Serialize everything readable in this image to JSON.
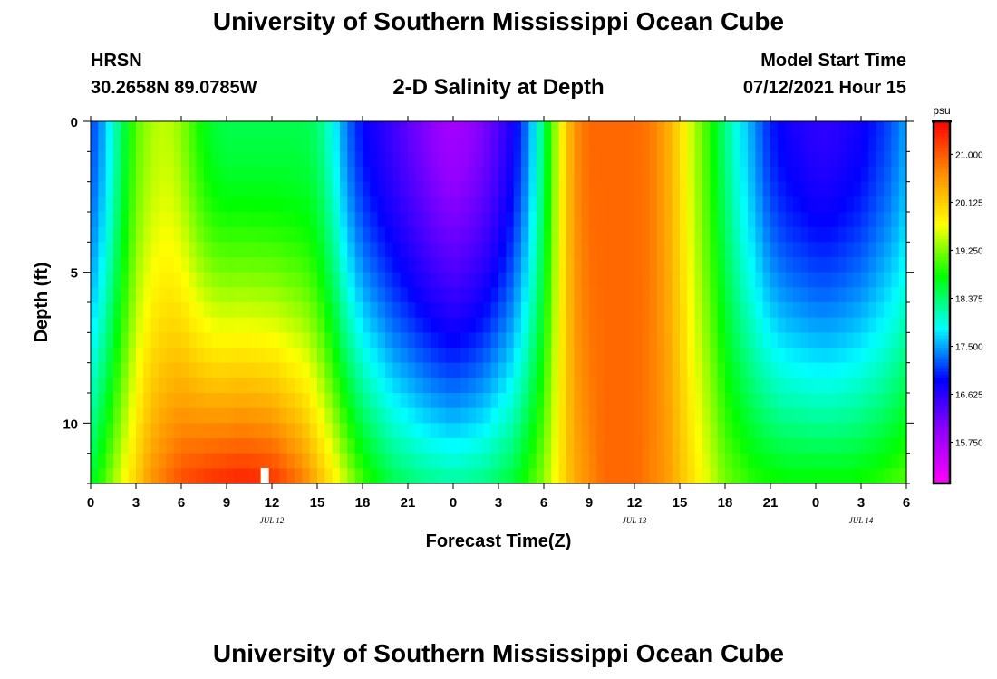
{
  "header": {
    "title": "University of Southern Mississippi Ocean Cube",
    "station": "HRSN",
    "coords": "30.2658N  89.0785W",
    "subtitle": "2-D Salinity at Depth",
    "start_label": "Model Start Time",
    "start_value": "07/12/2021 Hour 15"
  },
  "footer": {
    "title": "University of Southern Mississippi Ocean Cube"
  },
  "chart_data": {
    "type": "heatmap",
    "title": "2-D Salinity at Depth",
    "xlabel": "Forecast Time(Z)",
    "ylabel": "Depth (ft)",
    "x_range_hours": [
      0,
      54
    ],
    "y_range_ft": [
      0,
      12
    ],
    "x_ticks": [
      {
        "h": 0,
        "label": "0"
      },
      {
        "h": 3,
        "label": "3"
      },
      {
        "h": 6,
        "label": "6"
      },
      {
        "h": 9,
        "label": "9"
      },
      {
        "h": 12,
        "label": "12"
      },
      {
        "h": 15,
        "label": "15"
      },
      {
        "h": 18,
        "label": "18"
      },
      {
        "h": 21,
        "label": "21"
      },
      {
        "h": 24,
        "label": "0"
      },
      {
        "h": 27,
        "label": "3"
      },
      {
        "h": 30,
        "label": "6"
      },
      {
        "h": 33,
        "label": "9"
      },
      {
        "h": 36,
        "label": "12"
      },
      {
        "h": 39,
        "label": "15"
      },
      {
        "h": 42,
        "label": "18"
      },
      {
        "h": 45,
        "label": "21"
      },
      {
        "h": 48,
        "label": "0"
      },
      {
        "h": 51,
        "label": "3"
      },
      {
        "h": 54,
        "label": "6"
      }
    ],
    "y_ticks": [
      {
        "v": 0,
        "label": "0"
      },
      {
        "v": 5,
        "label": "5"
      },
      {
        "v": 10,
        "label": "10"
      }
    ],
    "date_labels": [
      {
        "h": 12,
        "label": "JUL 12"
      },
      {
        "h": 36,
        "label": "JUL 13"
      },
      {
        "h": 51,
        "label": "JUL 14"
      }
    ],
    "colorbar": {
      "units": "psu",
      "min": 15.0,
      "max": 21.6,
      "ticks": [
        "21.000",
        "20.125",
        "19.250",
        "18.375",
        "17.500",
        "16.625",
        "15.750"
      ],
      "tick_values": [
        21.0,
        20.125,
        19.25,
        18.375,
        17.5,
        16.625,
        15.75
      ],
      "colors": [
        "#ff00ff",
        "#9400ff",
        "#0000ff",
        "#00ffff",
        "#00ff00",
        "#ffff00",
        "#ff8c00",
        "#ff0000"
      ]
    },
    "depths_ft": [
      0,
      1,
      2,
      3,
      4,
      5,
      6,
      7,
      8,
      9,
      10,
      11,
      12
    ],
    "series": [
      {
        "name": "surface",
        "depth": 0,
        "hours": [
          0,
          1,
          2,
          3,
          4,
          5,
          6,
          7,
          8,
          9,
          10,
          11,
          12,
          13,
          14,
          15,
          16,
          17,
          18,
          19,
          20,
          21,
          22,
          23,
          24,
          25,
          26,
          27,
          28,
          29,
          30,
          31,
          32,
          33,
          34,
          35,
          36,
          37,
          38,
          39,
          40,
          41,
          42,
          43,
          44,
          45,
          46,
          47,
          48,
          49,
          50,
          51,
          52,
          53,
          54
        ],
        "values": [
          17.1,
          17.6,
          18.4,
          19.1,
          19.4,
          19.5,
          19.3,
          18.9,
          18.6,
          18.5,
          18.5,
          18.5,
          18.5,
          18.5,
          18.5,
          18.4,
          17.9,
          17.3,
          16.9,
          16.7,
          16.5,
          16.3,
          16.1,
          15.9,
          15.8,
          15.9,
          16.1,
          16.4,
          16.8,
          17.4,
          18.4,
          19.6,
          20.6,
          20.9,
          20.9,
          20.9,
          20.9,
          20.8,
          20.5,
          20.0,
          19.4,
          18.9,
          18.3,
          17.8,
          17.4,
          17.0,
          16.8,
          16.7,
          16.6,
          16.6,
          16.7,
          16.8,
          17.0,
          17.2,
          17.5
        ]
      },
      {
        "name": "bottom",
        "depth": 12,
        "hours": [
          0,
          2,
          4,
          6,
          8,
          10,
          12,
          14,
          16,
          18,
          20,
          22,
          24,
          26,
          28,
          30,
          32,
          34,
          36,
          38,
          40,
          42,
          44,
          46,
          48,
          50,
          52,
          54
        ],
        "values": [
          18.6,
          19.6,
          20.6,
          21.1,
          21.3,
          21.4,
          21.3,
          20.8,
          19.9,
          19.0,
          18.5,
          18.3,
          18.2,
          18.3,
          18.6,
          19.3,
          20.4,
          20.9,
          20.9,
          20.6,
          19.9,
          19.2,
          18.9,
          18.8,
          18.8,
          18.8,
          18.9,
          19.1
        ]
      }
    ],
    "marker": {
      "hour": 11.5,
      "depth_ft": 12
    }
  }
}
